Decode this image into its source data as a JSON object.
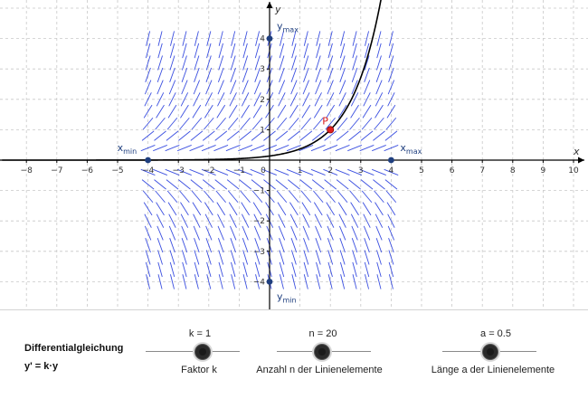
{
  "graph": {
    "x_axis_label": "x",
    "y_axis_label": "y",
    "x_ticks": [
      "−8",
      "−7",
      "−6",
      "−5",
      "−4",
      "−3",
      "−2",
      "−1",
      "0",
      "1",
      "2",
      "3",
      "4",
      "5",
      "6",
      "7",
      "8",
      "9",
      "10"
    ],
    "y_ticks": [
      "4",
      "3",
      "2",
      "1",
      "−1",
      "−2",
      "−3",
      "−4"
    ],
    "x_range": [
      -8.7,
      10.4
    ],
    "y_range": [
      -4.9,
      5.2
    ],
    "grid": true,
    "point_P": {
      "label": "P",
      "x": 2,
      "y": 1
    },
    "field_window": {
      "xmin": -4,
      "xmax": 4,
      "ymin": -4,
      "ymax": 4
    },
    "labels": {
      "xmin": {
        "main": "x",
        "sub": "min"
      },
      "xmax": {
        "main": "x",
        "sub": "max"
      },
      "ymin": {
        "main": "y",
        "sub": "min"
      },
      "ymax": {
        "main": "y",
        "sub": "max"
      }
    },
    "colors": {
      "field": "#3b4fe0",
      "curve": "#000000",
      "point": "#e02020",
      "window_points": "#1f3f7f",
      "grid": "#c8c8c8"
    }
  },
  "panel": {
    "equation_title": "Differentialgleichung",
    "equation": "y' = k·y",
    "sliders": [
      {
        "name": "k",
        "value_text": "k = 1",
        "caption": "Faktor k",
        "position": 0.6
      },
      {
        "name": "n",
        "value_text": "n = 20",
        "caption": "Anzahl n der Linienelemente",
        "position": 0.47
      },
      {
        "name": "a",
        "value_text": "a = 0.5",
        "caption": "Länge a der Linienelemente",
        "position": 0.5
      }
    ]
  }
}
